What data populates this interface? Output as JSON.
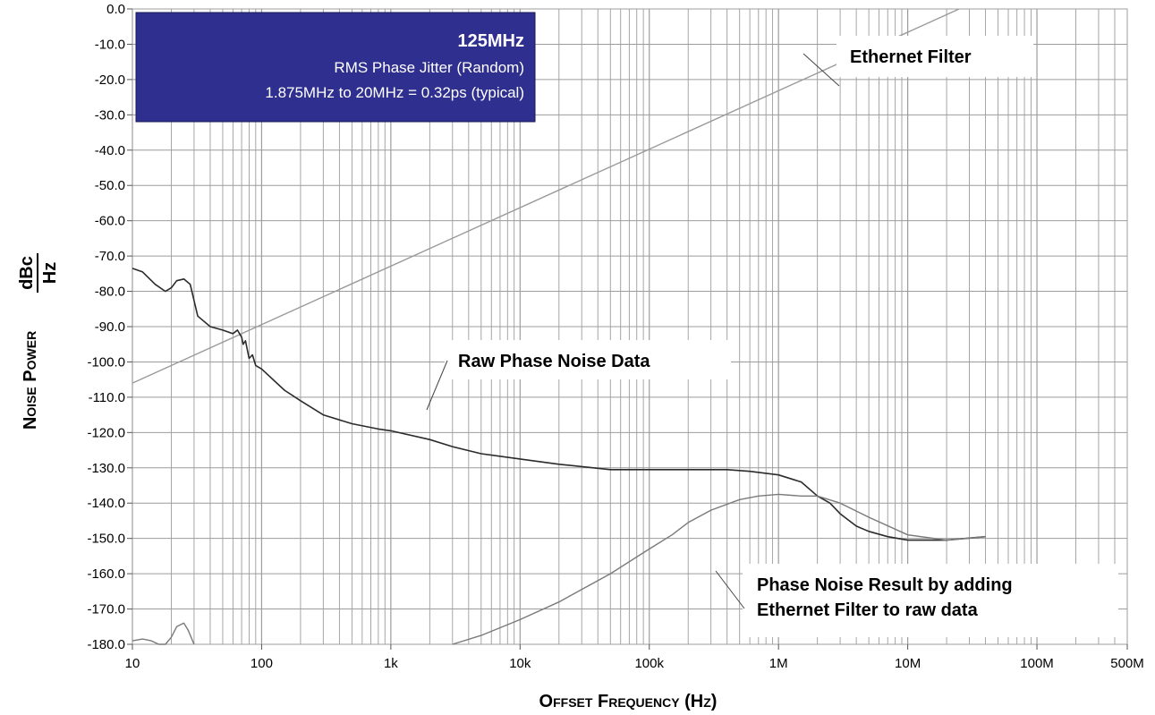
{
  "chart_data": {
    "type": "line",
    "x_scale": "log",
    "grid": true,
    "xlim": [
      10,
      500000000
    ],
    "ylim": [
      -180,
      0
    ],
    "x_ticks": [
      10,
      100,
      1000,
      10000,
      100000,
      1000000,
      10000000,
      100000000,
      500000000
    ],
    "x_tick_labels": [
      "10",
      "100",
      "1k",
      "10k",
      "100k",
      "1M",
      "10M",
      "100M",
      "500M"
    ],
    "y_ticks": [
      0,
      -10,
      -20,
      -30,
      -40,
      -50,
      -60,
      -70,
      -80,
      -90,
      -100,
      -110,
      -120,
      -130,
      -140,
      -150,
      -160,
      -170,
      -180
    ],
    "y_tick_labels": [
      "0.0",
      "-10.0",
      "-20.0",
      "-30.0",
      "-40.0",
      "-50.0",
      "-60.0",
      "-70.0",
      "-80.0",
      "-90.0",
      "-100.0",
      "-110.0",
      "-120.0",
      "-130.0",
      "-140.0",
      "-150.0",
      "-160.0",
      "-170.0",
      "-180.0"
    ],
    "xlabel": "Offset Frequency (Hz)",
    "ylabel_main": "Noise Power",
    "ylabel_num": "dBc",
    "ylabel_den": "Hz",
    "info_box": {
      "title": "125MHz",
      "line1": "RMS Phase Jitter (Random)",
      "line2": "1.875MHz to 20MHz = 0.32ps (typical)",
      "background": "#2f2f8f"
    },
    "annotations": {
      "filter": "Ethernet Filter",
      "raw": "Raw Phase Noise Data",
      "result_line1": "Phase Noise Result by adding",
      "result_line2": "Ethernet Filter to raw data"
    },
    "series": [
      {
        "color": "#9a9a9a",
        "x": [
          10,
          25000000
        ],
        "y": [
          -106,
          0
        ]
      },
      {
        "color": "#2b2b2b",
        "x": [
          10,
          12,
          15,
          18,
          20,
          22,
          25,
          28,
          32,
          40,
          50,
          60,
          65,
          70,
          72,
          75,
          78,
          80,
          85,
          90,
          100,
          150,
          200,
          300,
          500,
          800,
          1000,
          2000,
          3000,
          5000,
          10000,
          20000,
          50000,
          100000,
          200000,
          400000,
          600000,
          1000000,
          1500000,
          2000000,
          2500000,
          3000000,
          4000000,
          5000000,
          7000000,
          10000000,
          20000000,
          40000000
        ],
        "y": [
          -73.5,
          -74.5,
          -78,
          -80,
          -79,
          -77,
          -76.5,
          -78,
          -87,
          -90,
          -91,
          -92,
          -91,
          -93,
          -95,
          -94,
          -97,
          -99,
          -98,
          -101,
          -102,
          -108,
          -111,
          -115,
          -117.5,
          -119,
          -119.5,
          -122,
          -124,
          -126,
          -127.5,
          -129,
          -130.5,
          -130.5,
          -130.5,
          -130.5,
          -131,
          -132,
          -134,
          -138,
          -140,
          -143,
          -146.5,
          -148,
          -149.5,
          -150.5,
          -150.5,
          -149.5
        ]
      },
      {
        "color": "#7a7a7a",
        "x": [
          3000,
          5000,
          10000,
          20000,
          50000,
          100000,
          150000,
          200000,
          300000,
          500000,
          700000,
          1000000,
          1500000,
          2000000,
          3000000,
          5000000,
          10000000,
          20000000,
          40000000
        ],
        "y": [
          -180,
          -177.5,
          -173,
          -168,
          -160,
          -153,
          -149,
          -145.5,
          -142,
          -139,
          -138,
          -137.5,
          -138,
          -138,
          -140,
          -144,
          -149,
          -150.5,
          -149.5
        ]
      },
      {
        "color": "#7a7a7a",
        "x": [
          10,
          12,
          14,
          16,
          18,
          20,
          22,
          25,
          27,
          30
        ],
        "y": [
          -179,
          -178.5,
          -179,
          -180,
          -180,
          -178,
          -175,
          -174,
          -176,
          -180
        ]
      }
    ]
  }
}
